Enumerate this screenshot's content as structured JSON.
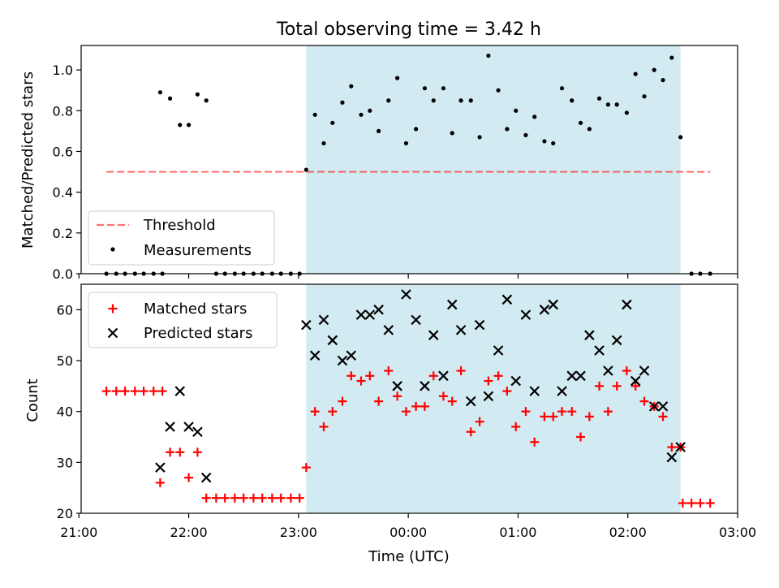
{
  "title": "Total observing time = 3.42 h",
  "xlabel": "Time (UTC)",
  "xticks": [
    "21:00",
    "22:00",
    "23:00",
    "00:00",
    "01:00",
    "02:00",
    "03:00"
  ],
  "colors": {
    "shade": "#add8e6",
    "threshold": "#ff0000",
    "measurement": "#000000",
    "matched": "#ff0000",
    "predicted": "#000000"
  },
  "chart_data": [
    {
      "type": "scatter",
      "ylabel": "Matched/Predicted stars",
      "xlim_hours": [
        -2.98,
        3.0
      ],
      "ylim": [
        0,
        1.12
      ],
      "yticks": [
        "0.0",
        "0.2",
        "0.4",
        "0.6",
        "0.8",
        "1.0"
      ],
      "shaded_interval_hours": [
        -0.93,
        2.48
      ],
      "threshold": {
        "name": "Threshold",
        "value": 0.5,
        "x_range_hours": [
          -2.75,
          2.75
        ]
      },
      "legend": {
        "entries": [
          "Threshold",
          "Measurements"
        ],
        "placement": "lower-left"
      },
      "series": [
        {
          "name": "Measurements",
          "points": [
            [
              -2.75,
              0
            ],
            [
              -2.66,
              0
            ],
            [
              -2.58,
              0
            ],
            [
              -2.49,
              0
            ],
            [
              -2.41,
              0
            ],
            [
              -2.32,
              0
            ],
            [
              -2.24,
              0
            ],
            [
              -2.26,
              0.89
            ],
            [
              -2.17,
              0.86
            ],
            [
              -2.08,
              0.73
            ],
            [
              -2.0,
              0.73
            ],
            [
              -1.92,
              0.88
            ],
            [
              -1.84,
              0.85
            ],
            [
              -1.75,
              0
            ],
            [
              -1.67,
              0
            ],
            [
              -1.58,
              0
            ],
            [
              -1.5,
              0
            ],
            [
              -1.41,
              0
            ],
            [
              -1.33,
              0
            ],
            [
              -1.24,
              0
            ],
            [
              -1.16,
              0
            ],
            [
              -1.07,
              0
            ],
            [
              -0.99,
              0
            ],
            [
              -0.93,
              0.51
            ],
            [
              -0.85,
              0.78
            ],
            [
              -0.77,
              0.64
            ],
            [
              -0.69,
              0.74
            ],
            [
              -0.6,
              0.84
            ],
            [
              -0.52,
              0.92
            ],
            [
              -0.43,
              0.78
            ],
            [
              -0.35,
              0.8
            ],
            [
              -0.27,
              0.7
            ],
            [
              -0.18,
              0.85
            ],
            [
              -0.1,
              0.96
            ],
            [
              -0.02,
              0.64
            ],
            [
              0.07,
              0.71
            ],
            [
              0.15,
              0.91
            ],
            [
              0.23,
              0.85
            ],
            [
              0.32,
              0.91
            ],
            [
              0.4,
              0.69
            ],
            [
              0.48,
              0.85
            ],
            [
              0.57,
              0.85
            ],
            [
              0.65,
              0.67
            ],
            [
              0.73,
              1.07
            ],
            [
              0.82,
              0.9
            ],
            [
              0.9,
              0.71
            ],
            [
              0.98,
              0.8
            ],
            [
              1.07,
              0.68
            ],
            [
              1.15,
              0.77
            ],
            [
              1.24,
              0.65
            ],
            [
              1.32,
              0.64
            ],
            [
              1.4,
              0.91
            ],
            [
              1.49,
              0.85
            ],
            [
              1.57,
              0.74
            ],
            [
              1.65,
              0.71
            ],
            [
              1.74,
              0.86
            ],
            [
              1.82,
              0.83
            ],
            [
              1.9,
              0.83
            ],
            [
              1.99,
              0.79
            ],
            [
              2.07,
              0.98
            ],
            [
              2.15,
              0.87
            ],
            [
              2.24,
              1.0
            ],
            [
              2.32,
              0.95
            ],
            [
              2.4,
              1.06
            ],
            [
              2.48,
              0.67
            ],
            [
              2.58,
              0
            ],
            [
              2.66,
              0
            ],
            [
              2.75,
              0
            ]
          ]
        }
      ]
    },
    {
      "type": "scatter",
      "ylabel": "Count",
      "xlim_hours": [
        -2.98,
        3.0
      ],
      "ylim": [
        20,
        65
      ],
      "yticks": [
        "20",
        "30",
        "40",
        "50",
        "60"
      ],
      "shaded_interval_hours": [
        -0.93,
        2.48
      ],
      "legend": {
        "entries": [
          "Matched stars",
          "Predicted stars"
        ],
        "placement": "top-left"
      },
      "series": [
        {
          "name": "Matched stars",
          "marker": "+",
          "points": [
            [
              -2.75,
              44
            ],
            [
              -2.66,
              44
            ],
            [
              -2.58,
              44
            ],
            [
              -2.49,
              44
            ],
            [
              -2.41,
              44
            ],
            [
              -2.32,
              44
            ],
            [
              -2.24,
              44
            ],
            [
              -2.26,
              26
            ],
            [
              -2.17,
              32
            ],
            [
              -2.08,
              32
            ],
            [
              -2.0,
              27
            ],
            [
              -1.92,
              32
            ],
            [
              -1.84,
              23
            ],
            [
              -1.75,
              23
            ],
            [
              -1.67,
              23
            ],
            [
              -1.58,
              23
            ],
            [
              -1.5,
              23
            ],
            [
              -1.41,
              23
            ],
            [
              -1.33,
              23
            ],
            [
              -1.24,
              23
            ],
            [
              -1.16,
              23
            ],
            [
              -1.07,
              23
            ],
            [
              -0.99,
              23
            ],
            [
              -0.93,
              29
            ],
            [
              -0.85,
              40
            ],
            [
              -0.77,
              37
            ],
            [
              -0.69,
              40
            ],
            [
              -0.6,
              42
            ],
            [
              -0.52,
              47
            ],
            [
              -0.43,
              46
            ],
            [
              -0.35,
              47
            ],
            [
              -0.27,
              42
            ],
            [
              -0.18,
              48
            ],
            [
              -0.1,
              43
            ],
            [
              -0.02,
              40
            ],
            [
              0.07,
              41
            ],
            [
              0.15,
              41
            ],
            [
              0.23,
              47
            ],
            [
              0.32,
              43
            ],
            [
              0.4,
              42
            ],
            [
              0.48,
              48
            ],
            [
              0.57,
              36
            ],
            [
              0.65,
              38
            ],
            [
              0.73,
              46
            ],
            [
              0.82,
              47
            ],
            [
              0.9,
              44
            ],
            [
              0.98,
              37
            ],
            [
              1.07,
              40
            ],
            [
              1.15,
              34
            ],
            [
              1.24,
              39
            ],
            [
              1.32,
              39
            ],
            [
              1.4,
              40
            ],
            [
              1.49,
              40
            ],
            [
              1.57,
              35
            ],
            [
              1.65,
              39
            ],
            [
              1.74,
              45
            ],
            [
              1.82,
              40
            ],
            [
              1.9,
              45
            ],
            [
              1.99,
              48
            ],
            [
              2.07,
              45
            ],
            [
              2.15,
              42
            ],
            [
              2.24,
              41
            ],
            [
              2.32,
              39
            ],
            [
              2.4,
              33
            ],
            [
              2.48,
              33
            ],
            [
              2.5,
              22
            ],
            [
              2.58,
              22
            ],
            [
              2.66,
              22
            ],
            [
              2.75,
              22
            ]
          ]
        },
        {
          "name": "Predicted stars",
          "marker": "x",
          "points": [
            [
              -2.26,
              29
            ],
            [
              -2.17,
              37
            ],
            [
              -2.08,
              44
            ],
            [
              -2.0,
              37
            ],
            [
              -1.92,
              36
            ],
            [
              -1.84,
              27
            ],
            [
              -0.93,
              57
            ],
            [
              -0.85,
              51
            ],
            [
              -0.77,
              58
            ],
            [
              -0.69,
              54
            ],
            [
              -0.6,
              50
            ],
            [
              -0.52,
              51
            ],
            [
              -0.43,
              59
            ],
            [
              -0.35,
              59
            ],
            [
              -0.27,
              60
            ],
            [
              -0.18,
              56
            ],
            [
              -0.1,
              45
            ],
            [
              -0.02,
              63
            ],
            [
              0.07,
              58
            ],
            [
              0.15,
              45
            ],
            [
              0.23,
              55
            ],
            [
              0.32,
              47
            ],
            [
              0.4,
              61
            ],
            [
              0.48,
              56
            ],
            [
              0.57,
              42
            ],
            [
              0.65,
              57
            ],
            [
              0.73,
              43
            ],
            [
              0.82,
              52
            ],
            [
              0.9,
              62
            ],
            [
              0.98,
              46
            ],
            [
              1.07,
              59
            ],
            [
              1.15,
              44
            ],
            [
              1.24,
              60
            ],
            [
              1.32,
              61
            ],
            [
              1.4,
              44
            ],
            [
              1.49,
              47
            ],
            [
              1.57,
              47
            ],
            [
              1.65,
              55
            ],
            [
              1.74,
              52
            ],
            [
              1.82,
              48
            ],
            [
              1.9,
              54
            ],
            [
              1.99,
              61
            ],
            [
              2.07,
              46
            ],
            [
              2.15,
              48
            ],
            [
              2.24,
              41
            ],
            [
              2.32,
              41
            ],
            [
              2.4,
              31
            ],
            [
              2.48,
              33
            ]
          ]
        }
      ]
    }
  ]
}
